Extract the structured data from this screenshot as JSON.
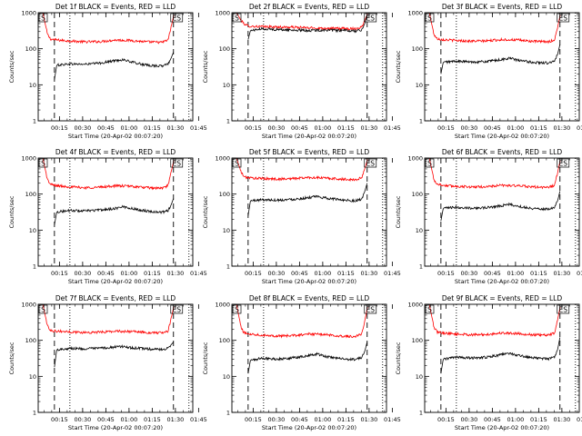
{
  "figure": {
    "ylabel": "Counts/sec",
    "xlabel": "Start Time (20-Apr-02 00:07:20)",
    "x_tick_labels": [
      "00:15",
      "00:30",
      "00:45",
      "01:00",
      "01:15",
      "01:30",
      "01:45"
    ],
    "y_tick_labels": [
      "1",
      "10",
      "100",
      "1000"
    ],
    "marker_left": "S",
    "marker_right": "ES",
    "colors": {
      "events": "#000000",
      "lld": "#ff0000",
      "axes": "#000000"
    }
  },
  "chart_data": [
    {
      "type": "line",
      "title": "Det 1f BLACK = Events, RED = LLD",
      "x_range_minutes": [
        0,
        100
      ],
      "ylim": [
        1,
        1000
      ],
      "y_scale": "log",
      "dashed_lines_minutes": [
        10.5,
        87.5
      ],
      "dotted_lines_minutes": [
        20.5,
        97.5
      ],
      "series": [
        {
          "color": "#ff0000",
          "x": [
            3,
            6,
            8,
            12,
            20,
            30,
            40,
            50,
            60,
            70,
            80,
            84,
            86.5,
            88
          ],
          "values": [
            1000,
            250,
            185,
            175,
            165,
            155,
            158,
            175,
            170,
            155,
            150,
            175,
            500,
            1000
          ]
        },
        {
          "color": "#000000",
          "x": [
            10.5,
            12,
            20,
            30,
            40,
            50,
            55,
            60,
            70,
            80,
            84,
            86,
            87.5
          ],
          "values": [
            14,
            35,
            38,
            37,
            40,
            47,
            50,
            43,
            35,
            33,
            38,
            55,
            80
          ]
        }
      ]
    },
    {
      "type": "line",
      "title": "Det 2f BLACK = Events, RED = LLD",
      "x_range_minutes": [
        0,
        100
      ],
      "ylim": [
        1,
        1000
      ],
      "y_scale": "log",
      "dashed_lines_minutes": [
        10.5,
        87.5
      ],
      "dotted_lines_minutes": [
        20.5,
        97.5
      ],
      "series": [
        {
          "color": "#ff0000",
          "x": [
            3,
            6,
            9,
            12,
            20,
            30,
            40,
            50,
            60,
            70,
            80,
            84,
            86.5,
            88
          ],
          "values": [
            1000,
            600,
            450,
            420,
            410,
            400,
            395,
            380,
            370,
            365,
            360,
            400,
            700,
            1000
          ]
        },
        {
          "color": "#000000",
          "x": [
            10.5,
            12,
            20,
            30,
            40,
            50,
            60,
            70,
            80,
            84,
            86,
            87.5
          ],
          "values": [
            180,
            320,
            360,
            340,
            330,
            320,
            330,
            320,
            310,
            330,
            500,
            900
          ]
        }
      ]
    },
    {
      "type": "line",
      "title": "Det 3f BLACK = Events, RED = LLD",
      "x_range_minutes": [
        0,
        100
      ],
      "ylim": [
        1,
        1000
      ],
      "y_scale": "log",
      "dashed_lines_minutes": [
        10.5,
        87.5
      ],
      "dotted_lines_minutes": [
        20.5,
        97.5
      ],
      "series": [
        {
          "color": "#ff0000",
          "x": [
            3,
            6,
            8,
            12,
            20,
            30,
            40,
            50,
            60,
            70,
            80,
            84,
            86.5,
            88
          ],
          "values": [
            1000,
            250,
            190,
            180,
            170,
            162,
            165,
            180,
            175,
            160,
            155,
            175,
            500,
            1000
          ]
        },
        {
          "color": "#000000",
          "x": [
            10.5,
            12,
            20,
            30,
            40,
            50,
            55,
            60,
            70,
            80,
            84,
            86,
            87.5
          ],
          "values": [
            20,
            42,
            45,
            43,
            44,
            50,
            55,
            48,
            42,
            40,
            45,
            70,
            130
          ]
        }
      ]
    },
    {
      "type": "line",
      "title": "Det 4f BLACK = Events, RED = LLD",
      "x_range_minutes": [
        0,
        100
      ],
      "ylim": [
        1,
        1000
      ],
      "y_scale": "log",
      "dashed_lines_minutes": [
        10.5,
        87.5
      ],
      "dotted_lines_minutes": [
        20.5,
        97.5
      ],
      "series": [
        {
          "color": "#ff0000",
          "x": [
            3,
            6,
            8,
            12,
            20,
            30,
            40,
            50,
            60,
            70,
            80,
            84,
            86.5,
            88
          ],
          "values": [
            1000,
            250,
            185,
            170,
            160,
            150,
            155,
            170,
            165,
            150,
            145,
            170,
            500,
            1000
          ]
        },
        {
          "color": "#000000",
          "x": [
            10.5,
            12,
            20,
            30,
            40,
            50,
            55,
            60,
            70,
            80,
            84,
            86,
            87.5
          ],
          "values": [
            14,
            32,
            35,
            34,
            36,
            40,
            45,
            40,
            34,
            31,
            35,
            50,
            75
          ]
        }
      ]
    },
    {
      "type": "line",
      "title": "Det 5f BLACK = Events, RED = LLD",
      "x_range_minutes": [
        0,
        100
      ],
      "ylim": [
        1,
        1000
      ],
      "y_scale": "log",
      "dashed_lines_minutes": [
        10.5,
        87.5
      ],
      "dotted_lines_minutes": [
        20.5,
        97.5
      ],
      "series": [
        {
          "color": "#ff0000",
          "x": [
            3,
            6,
            8,
            12,
            20,
            30,
            40,
            50,
            60,
            70,
            80,
            84,
            86.5,
            88
          ],
          "values": [
            1000,
            400,
            300,
            280,
            270,
            260,
            270,
            290,
            280,
            260,
            250,
            280,
            600,
            1000
          ]
        },
        {
          "color": "#000000",
          "x": [
            10.5,
            12,
            20,
            30,
            40,
            50,
            55,
            60,
            70,
            80,
            84,
            86,
            87.5
          ],
          "values": [
            25,
            65,
            70,
            68,
            72,
            80,
            85,
            78,
            70,
            65,
            72,
            120,
            200
          ]
        }
      ]
    },
    {
      "type": "line",
      "title": "Det 6f BLACK = Events, RED = LLD",
      "x_range_minutes": [
        0,
        100
      ],
      "ylim": [
        1,
        1000
      ],
      "y_scale": "log",
      "dashed_lines_minutes": [
        10.5,
        87.5
      ],
      "dotted_lines_minutes": [
        20.5,
        97.5
      ],
      "series": [
        {
          "color": "#ff0000",
          "x": [
            3,
            6,
            8,
            12,
            20,
            30,
            40,
            50,
            60,
            70,
            80,
            84,
            86.5,
            88
          ],
          "values": [
            1000,
            250,
            190,
            175,
            165,
            158,
            160,
            175,
            170,
            158,
            152,
            175,
            500,
            1000
          ]
        },
        {
          "color": "#000000",
          "x": [
            10.5,
            12,
            20,
            30,
            40,
            50,
            55,
            60,
            70,
            80,
            84,
            86,
            87.5
          ],
          "values": [
            18,
            40,
            43,
            41,
            42,
            48,
            52,
            46,
            40,
            38,
            43,
            65,
            120
          ]
        }
      ]
    },
    {
      "type": "line",
      "title": "Det 7f BLACK = Events, RED = LLD",
      "x_range_minutes": [
        0,
        100
      ],
      "ylim": [
        1,
        1000
      ],
      "y_scale": "log",
      "dashed_lines_minutes": [
        10.5,
        87.5
      ],
      "dotted_lines_minutes": [
        20.5,
        97.5
      ],
      "series": [
        {
          "color": "#ff0000",
          "x": [
            3,
            6,
            8,
            12,
            20,
            30,
            40,
            50,
            60,
            70,
            80,
            84,
            86.5,
            88
          ],
          "values": [
            1000,
            250,
            190,
            180,
            172,
            165,
            168,
            180,
            175,
            165,
            160,
            180,
            500,
            1000
          ]
        },
        {
          "color": "#000000",
          "x": [
            10.5,
            12,
            20,
            30,
            40,
            50,
            55,
            60,
            70,
            80,
            84,
            86,
            87.5
          ],
          "values": [
            18,
            55,
            60,
            58,
            60,
            65,
            68,
            62,
            58,
            55,
            60,
            75,
            90
          ]
        }
      ]
    },
    {
      "type": "line",
      "title": "Det 8f BLACK = Events, RED = LLD",
      "x_range_minutes": [
        0,
        100
      ],
      "ylim": [
        1,
        1000
      ],
      "y_scale": "log",
      "dashed_lines_minutes": [
        10.5,
        87.5
      ],
      "dotted_lines_minutes": [
        20.5,
        97.5
      ],
      "series": [
        {
          "color": "#ff0000",
          "x": [
            3,
            6,
            8,
            12,
            20,
            30,
            40,
            50,
            60,
            70,
            80,
            84,
            86.5,
            88
          ],
          "values": [
            1000,
            220,
            160,
            150,
            140,
            132,
            135,
            150,
            145,
            132,
            128,
            150,
            450,
            1000
          ]
        },
        {
          "color": "#000000",
          "x": [
            10.5,
            12,
            20,
            30,
            40,
            50,
            55,
            60,
            70,
            80,
            84,
            86,
            87.5
          ],
          "values": [
            12,
            28,
            32,
            30,
            33,
            38,
            42,
            36,
            31,
            29,
            33,
            50,
            90
          ]
        }
      ]
    },
    {
      "type": "line",
      "title": "Det 9f BLACK = Events, RED = LLD",
      "x_range_minutes": [
        0,
        100
      ],
      "ylim": [
        1,
        1000
      ],
      "y_scale": "log",
      "dashed_lines_minutes": [
        10.5,
        87.5
      ],
      "dotted_lines_minutes": [
        20.5,
        97.5
      ],
      "series": [
        {
          "color": "#ff0000",
          "x": [
            3,
            6,
            8,
            12,
            20,
            30,
            40,
            50,
            60,
            70,
            80,
            84,
            86.5,
            88
          ],
          "values": [
            1000,
            230,
            170,
            160,
            150,
            142,
            145,
            160,
            155,
            142,
            138,
            160,
            480,
            1000
          ]
        },
        {
          "color": "#000000",
          "x": [
            10.5,
            12,
            20,
            30,
            40,
            50,
            55,
            60,
            70,
            80,
            84,
            86,
            87.5
          ],
          "values": [
            12,
            30,
            34,
            32,
            34,
            40,
            44,
            38,
            33,
            30,
            35,
            55,
            120
          ]
        }
      ]
    }
  ]
}
